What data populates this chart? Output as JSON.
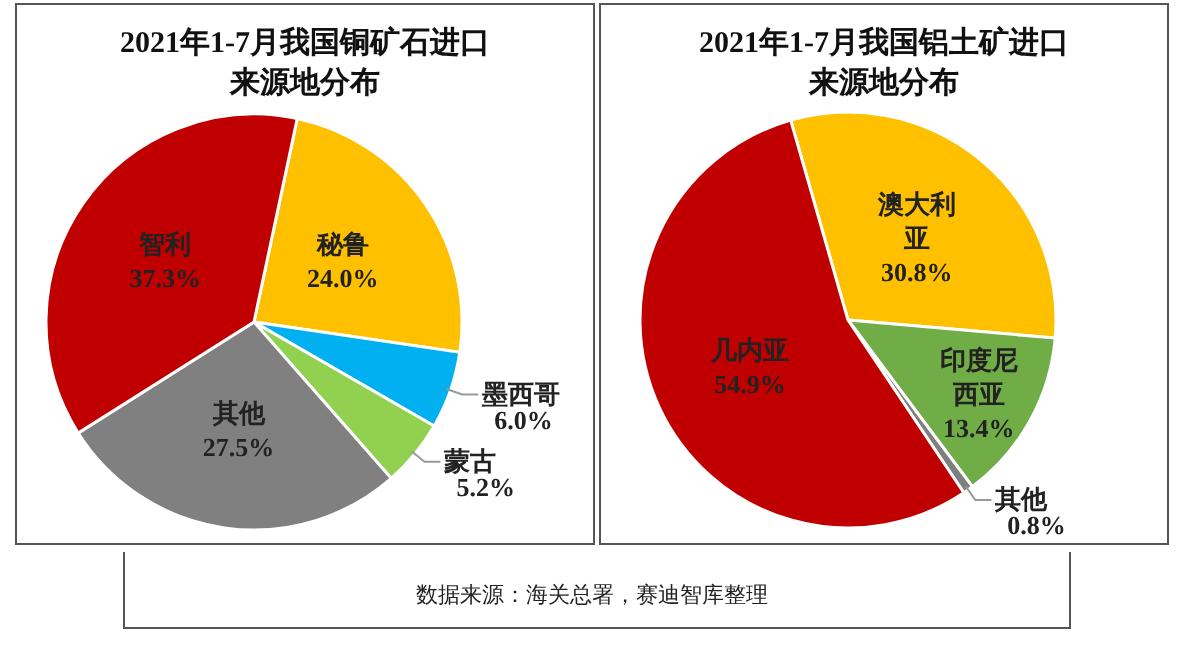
{
  "chart_data": [
    {
      "type": "pie",
      "title": "2021年1-7月我国铜矿石进口来源地分布",
      "categories": [
        "秘鲁",
        "墨西哥",
        "蒙古",
        "其他",
        "智利"
      ],
      "values": [
        24.0,
        6.0,
        5.2,
        27.5,
        37.3
      ],
      "colors": [
        "#ffc000",
        "#00b0f0",
        "#92d050",
        "#808080",
        "#c00000"
      ],
      "value_labels": [
        "24.0%",
        "6.0%",
        "5.2%",
        "27.5%",
        "37.3%"
      ]
    },
    {
      "type": "pie",
      "title": "2021年1-7月我国铝土矿进口来源地分布",
      "categories": [
        "澳大利亚",
        "印度尼西亚",
        "其他",
        "几内亚"
      ],
      "values": [
        30.8,
        13.4,
        0.8,
        54.9
      ],
      "colors": [
        "#ffc000",
        "#70ad47",
        "#7f7f7f",
        "#c00000"
      ],
      "value_labels": [
        "30.8%",
        "13.4%",
        "0.8%",
        "54.9%"
      ],
      "annotations": [
        "数据来源：海关总署，赛迪智库整理"
      ]
    }
  ]
}
